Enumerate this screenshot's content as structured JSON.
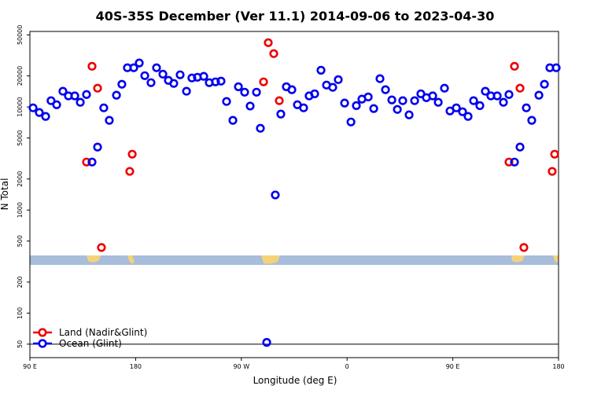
{
  "chart_data": {
    "type": "scatter",
    "title": "40S-35S December (Ver 11.1)   2014-09-06 to 2023-04-30",
    "xlabel": "Longitude (deg E)",
    "ylabel": "N Total",
    "log_y": true,
    "xlim": [
      90,
      540
    ],
    "ylim": [
      37,
      54000
    ],
    "xticks": [
      {
        "value": 90,
        "label": "90 E"
      },
      {
        "value": 180,
        "label": "180"
      },
      {
        "value": 270,
        "label": "90 W"
      },
      {
        "value": 360,
        "label": "0"
      },
      {
        "value": 450,
        "label": "90 E"
      },
      {
        "value": 540,
        "label": "180"
      }
    ],
    "yticks": [
      50,
      100,
      200,
      500,
      1000,
      2000,
      5000,
      10000,
      20000,
      50000
    ],
    "reference_line": 50,
    "legend": "bottom-left",
    "series": [
      {
        "name": "Land (Nadir&Glint)",
        "color": "#ee0000",
        "x": [
          138.2,
          142.9,
          147.6,
          150.9,
          175,
          177.1,
          288.9,
          292.9,
          297.6,
          302.3,
          497.8,
          502.5,
          507.2,
          510.5,
          534.6,
          536.7
        ],
        "values": [
          2920,
          24800,
          15200,
          433,
          2370,
          3480,
          17500,
          42000,
          32900,
          11500,
          2920,
          24800,
          15200,
          433,
          2370,
          3480
        ]
      },
      {
        "name": "Ocean (Glint)",
        "color": "#0000ee",
        "x": [
          92.7,
          98,
          103.4,
          108,
          112.8,
          118.1,
          122.8,
          128.2,
          132.9,
          138.2,
          142.9,
          147.6,
          152.9,
          157.6,
          163.7,
          168.3,
          173,
          178.4,
          183.1,
          187.8,
          193.1,
          197.8,
          203.2,
          207.9,
          212.5,
          217.9,
          223.3,
          227.9,
          232.6,
          238,
          242.7,
          248,
          252.7,
          257.4,
          262.8,
          267.5,
          272.8,
          277.5,
          282.9,
          286.2,
          291.6,
          298.9,
          303.6,
          308.3,
          313,
          317.7,
          323,
          327.7,
          332.4,
          337.8,
          342.5,
          347.8,
          352.5,
          357.9,
          363.3,
          367.9,
          372.6,
          378,
          382.7,
          388,
          392.7,
          398.1,
          402.8,
          407.4,
          412.8,
          417.5,
          422.8,
          427.5,
          432.9,
          437.6,
          442.9,
          447.6,
          453,
          458.3,
          463,
          467.7,
          473,
          477.7,
          482.4,
          487.8,
          493.1,
          497.8,
          502.5,
          507.2,
          512.6,
          517.2,
          523.3,
          528,
          532.6,
          538
        ],
        "values": [
          9800,
          8830,
          8090,
          11500,
          10500,
          14200,
          12800,
          12800,
          11100,
          13200,
          2920,
          4080,
          9800,
          7410,
          13000,
          16600,
          24000,
          24000,
          26700,
          20100,
          17200,
          24000,
          20800,
          18100,
          16900,
          20500,
          14200,
          19100,
          19400,
          19800,
          17200,
          17500,
          17800,
          11300,
          7410,
          15700,
          13900,
          10200,
          13900,
          6210,
          52,
          1400,
          8530,
          15700,
          14700,
          10500,
          9800,
          12800,
          13400,
          22700,
          16300,
          15500,
          18400,
          10900,
          7150,
          10300,
          11900,
          12500,
          9640,
          18800,
          14700,
          11700,
          9460,
          11500,
          8380,
          11500,
          13400,
          12300,
          12800,
          11100,
          15200,
          9140,
          9800,
          8980,
          8090,
          11500,
          10300,
          14200,
          12800,
          12800,
          11100,
          13200,
          2920,
          4080,
          9800,
          7410,
          13000,
          16600,
          24000,
          24000
        ]
      }
    ]
  }
}
